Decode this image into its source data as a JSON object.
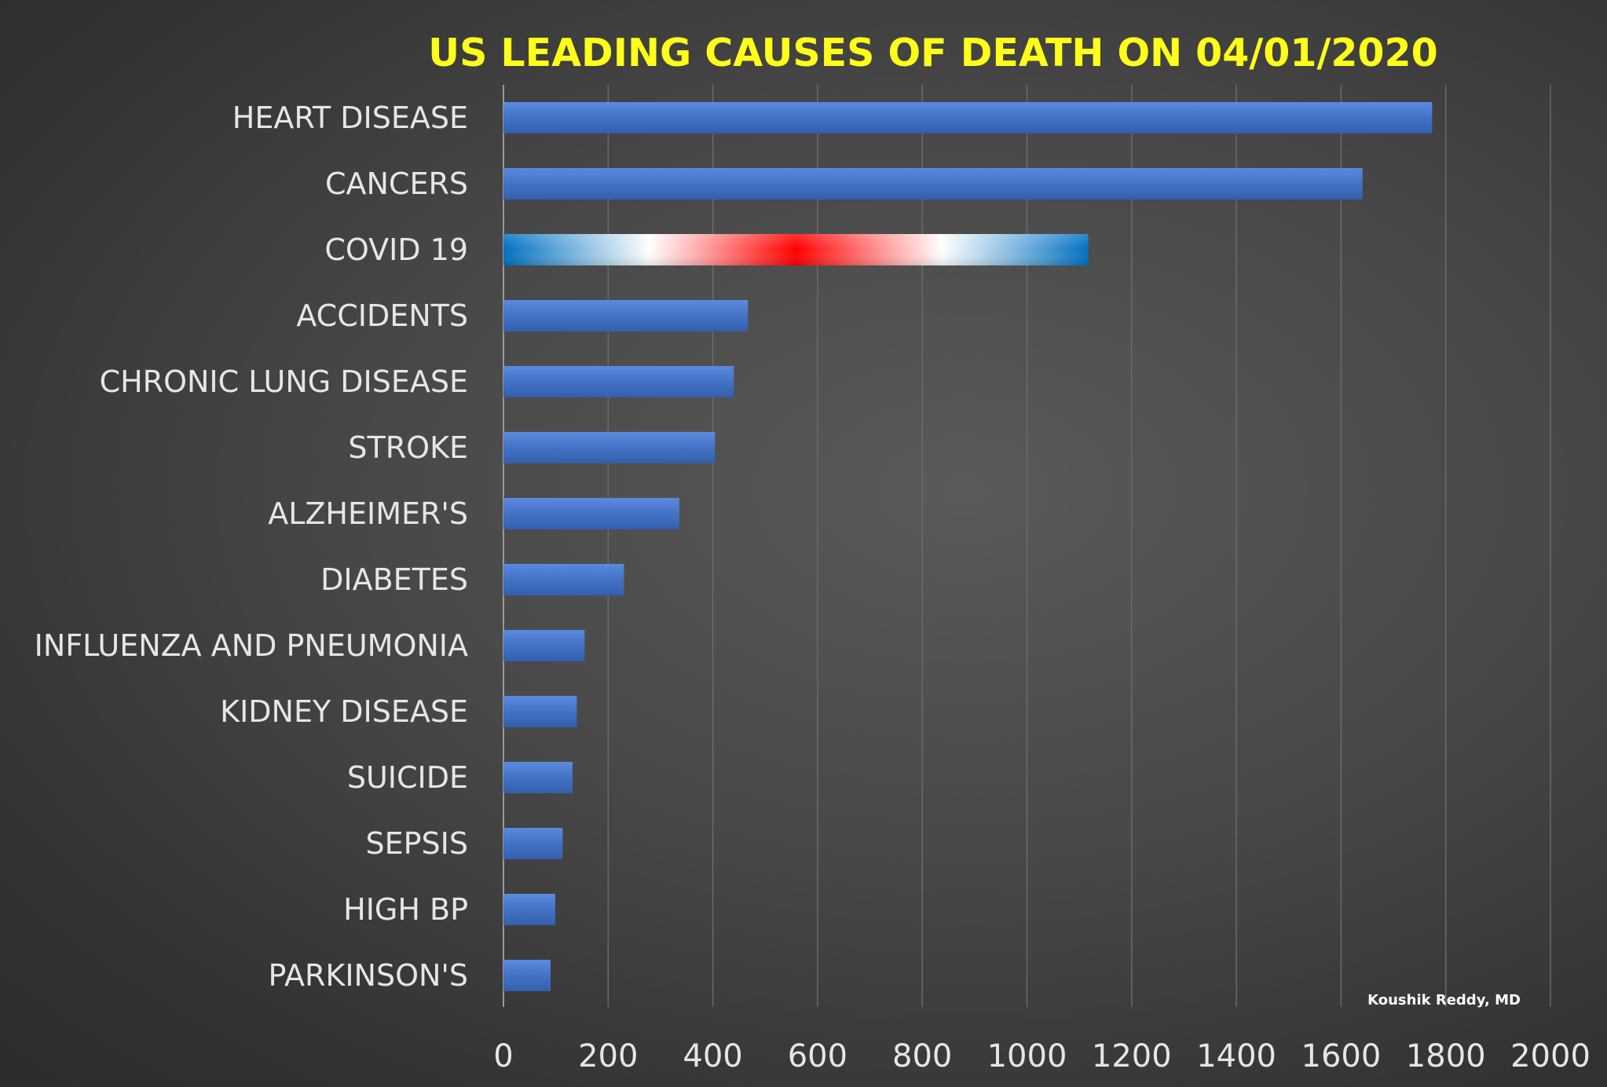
{
  "chart_data": {
    "type": "bar",
    "orientation": "horizontal",
    "title": "US LEADING CAUSES OF DEATH ON 04/01/2020",
    "credit": "Koushik Reddy, MD",
    "categories": [
      "HEART DISEASE",
      "CANCERS",
      "COVID 19",
      "ACCIDENTS",
      "CHRONIC LUNG DISEASE",
      "STROKE",
      "ALZHEIMER'S",
      "DIABETES",
      "INFLUENZA AND PNEUMONIA",
      "KIDNEY DISEASE",
      "SUICIDE",
      "SEPSIS",
      "HIGH BP",
      "PARKINSON'S"
    ],
    "values": [
      1774,
      1641,
      1117,
      467,
      440,
      404,
      336,
      230,
      155,
      140,
      132,
      113,
      99,
      90
    ],
    "highlight_category": "COVID 19",
    "xlim": [
      0,
      2000
    ],
    "xticks": [
      0,
      200,
      400,
      600,
      800,
      1000,
      1200,
      1400,
      1600,
      1800,
      2000
    ],
    "grid": true,
    "colors": {
      "bar": "#4472c4",
      "highlight_stops": [
        "#0070c0",
        "#ffffff",
        "#ff0000",
        "#ffffff",
        "#0070c0"
      ],
      "title": "#ffff1a",
      "text": "#e6e6e6",
      "grid": "#6a6a6a"
    }
  }
}
